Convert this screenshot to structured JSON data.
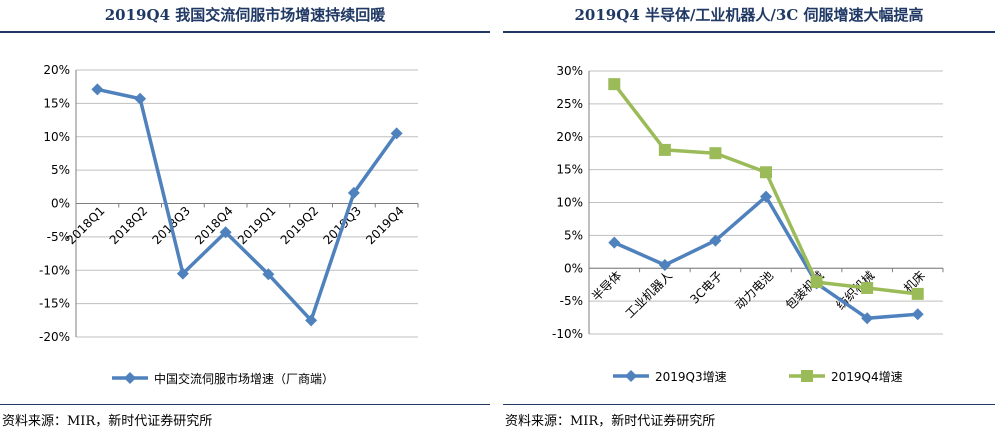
{
  "left": {
    "title": "2019Q4 我国交流伺服市场增速持续回暖",
    "source": "资料来源：MIR，新时代证券研究所"
  },
  "right": {
    "title": "2019Q4 半导体/工业机器人/3C 伺服增速大幅提高",
    "source": "资料来源：MIR，新时代证券研究所"
  },
  "chart_data": [
    {
      "type": "line",
      "title": "2019Q4 我国交流伺服市场增速持续回暖",
      "categories": [
        "2018Q1",
        "2018Q2",
        "2018Q3",
        "2018Q4",
        "2019Q1",
        "2019Q2",
        "2019Q3",
        "2019Q4"
      ],
      "series": [
        {
          "name": "中国交流伺服市场增速（厂商端）",
          "values": [
            17.1,
            15.7,
            -10.5,
            -4.3,
            -10.6,
            -17.5,
            1.6,
            10.5
          ],
          "color": "#4f81bd",
          "marker": "diamond"
        }
      ],
      "yticks": [
        "20%",
        "15%",
        "10%",
        "5%",
        "0%",
        "-5%",
        "-10%",
        "-15%",
        "-20%"
      ],
      "ylim": [
        -20,
        20
      ],
      "grid": true,
      "legend": "bottom"
    },
    {
      "type": "line",
      "title": "2019Q4 半导体/工业机器人/3C 伺服增速大幅提高",
      "categories": [
        "半导体",
        "工业机器人",
        "3C电子",
        "动力电池",
        "包装机械",
        "纺织机械",
        "机床"
      ],
      "series": [
        {
          "name": "2019Q3增速",
          "values": [
            3.9,
            0.5,
            4.2,
            10.9,
            -2.3,
            -7.6,
            -7.0
          ],
          "color": "#4f81bd",
          "marker": "diamond"
        },
        {
          "name": "2019Q4增速",
          "values": [
            28.0,
            18.0,
            17.5,
            14.6,
            -2.1,
            -3.0,
            -3.9
          ],
          "color": "#9bbb59",
          "marker": "square"
        }
      ],
      "yticks": [
        "30%",
        "25%",
        "20%",
        "15%",
        "10%",
        "5%",
        "0%",
        "-5%",
        "-10%"
      ],
      "ylim": [
        -10,
        30
      ],
      "grid": true,
      "legend": "bottom"
    }
  ]
}
